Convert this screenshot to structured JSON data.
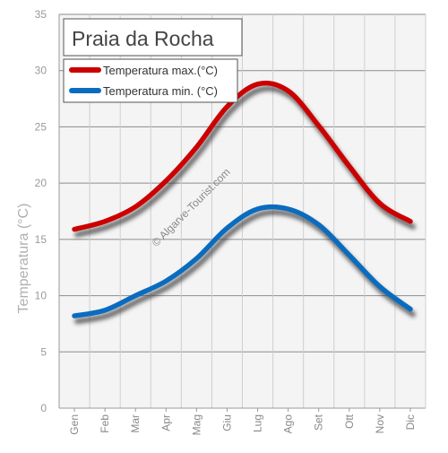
{
  "chart_data": {
    "type": "line",
    "title": "Praia da Rocha",
    "xlabel": "",
    "ylabel": "Temperatura (°C)",
    "watermark": "© Algarve-Tourist.com",
    "categories": [
      "Gen",
      "Feb",
      "Mar",
      "Apr",
      "Mag",
      "Giu",
      "Lug",
      "Ago",
      "Set",
      "Ott",
      "Nov",
      "Dic"
    ],
    "ylim": [
      0,
      35
    ],
    "yticks": [
      0,
      5,
      10,
      15,
      20,
      25,
      30,
      35
    ],
    "grid": true,
    "legend_position": "top-left",
    "series": [
      {
        "name": "Temperatura max.(°C)",
        "color": "#cc0000",
        "values": [
          15.9,
          16.6,
          17.9,
          20.2,
          23.2,
          26.8,
          28.8,
          28.2,
          25.1,
          21.5,
          18.2,
          16.6
        ]
      },
      {
        "name": "Temperatura min. (°C)",
        "color": "#0a6cbf",
        "values": [
          8.2,
          8.7,
          10.0,
          11.3,
          13.3,
          16.0,
          17.7,
          17.7,
          16.3,
          13.6,
          10.8,
          8.8
        ]
      }
    ]
  }
}
